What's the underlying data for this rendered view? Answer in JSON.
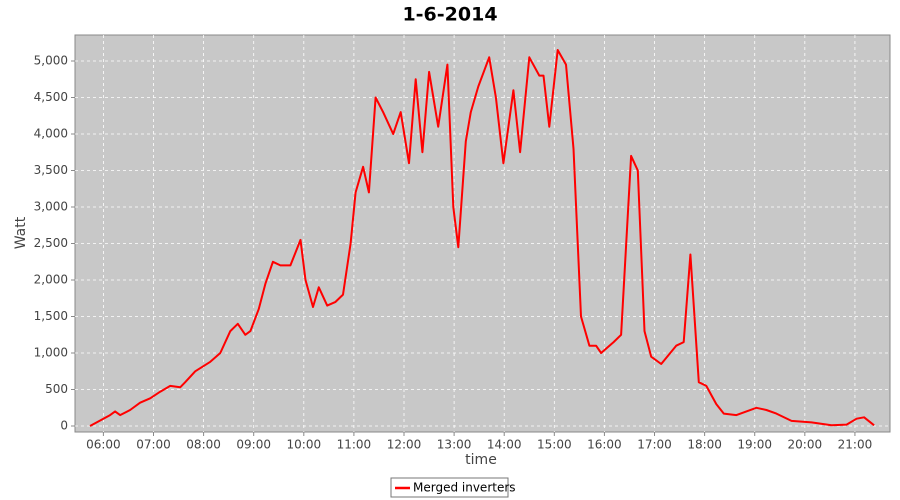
{
  "chart_data": {
    "type": "line",
    "title": "1-6-2014",
    "x_label": "time",
    "y_label": "Watt",
    "x": [
      "05:44",
      "06:08",
      "06:14",
      "06:20",
      "06:32",
      "06:44",
      "06:56",
      "07:08",
      "07:20",
      "07:32",
      "07:38",
      "07:50",
      "08:08",
      "08:20",
      "08:32",
      "08:41",
      "08:50",
      "08:56",
      "09:06",
      "09:14",
      "09:23",
      "09:32",
      "09:44",
      "09:56",
      "10:02",
      "10:11",
      "10:18",
      "10:28",
      "10:38",
      "10:47",
      "10:56",
      "11:02",
      "11:11",
      "11:18",
      "11:26",
      "11:35",
      "11:47",
      "11:56",
      "12:06",
      "12:14",
      "12:22",
      "12:30",
      "12:41",
      "12:52",
      "12:59",
      "13:05",
      "13:14",
      "13:20",
      "13:29",
      "13:42",
      "13:50",
      "13:59",
      "14:11",
      "14:19",
      "14:30",
      "14:42",
      "14:47",
      "14:54",
      "15:04",
      "15:14",
      "15:23",
      "15:32",
      "15:42",
      "15:50",
      "15:56",
      "16:11",
      "16:20",
      "16:32",
      "16:40",
      "16:48",
      "16:56",
      "17:08",
      "17:26",
      "17:35",
      "17:43",
      "17:53",
      "18:02",
      "18:14",
      "18:23",
      "18:38",
      "18:50",
      "19:02",
      "19:14",
      "19:26",
      "19:44",
      "20:08",
      "20:32",
      "20:50",
      "21:02",
      "21:11",
      "21:23"
    ],
    "series": [
      {
        "name": "Merged inverters",
        "color": "#ff0000",
        "values": [
          0,
          150,
          200,
          150,
          220,
          320,
          380,
          470,
          550,
          530,
          600,
          750,
          880,
          1000,
          1300,
          1400,
          1250,
          1300,
          1600,
          1950,
          2250,
          2200,
          2200,
          2550,
          2000,
          1630,
          1900,
          1650,
          1700,
          1800,
          2500,
          3200,
          3550,
          3200,
          4500,
          4300,
          4000,
          4300,
          3600,
          4750,
          3750,
          4850,
          4100,
          4950,
          3000,
          2450,
          3900,
          4300,
          4650,
          5050,
          4500,
          3600,
          4600,
          3750,
          5050,
          4800,
          4800,
          4100,
          5150,
          4950,
          3800,
          1500,
          1100,
          1100,
          1000,
          1150,
          1250,
          3700,
          3500,
          1300,
          950,
          850,
          1100,
          1150,
          2350,
          600,
          550,
          300,
          170,
          150,
          200,
          250,
          220,
          170,
          70,
          50,
          10,
          20,
          100,
          120,
          10
        ]
      }
    ],
    "xlim": [
      "05:26",
      "21:42"
    ],
    "xticks": [
      "06:00",
      "07:00",
      "08:00",
      "09:00",
      "10:00",
      "11:00",
      "12:00",
      "13:00",
      "14:00",
      "15:00",
      "16:00",
      "17:00",
      "18:00",
      "19:00",
      "20:00",
      "21:00"
    ],
    "ylim": [
      -82,
      5356
    ],
    "yticks": [
      0,
      500,
      {
        "value": 1000,
        "label": "1,000"
      },
      {
        "value": 1500,
        "label": "1,500"
      },
      {
        "value": 2000,
        "label": "2,000"
      },
      {
        "value": 2500,
        "label": "2,500"
      },
      {
        "value": 3000,
        "label": "3,000"
      },
      {
        "value": 3500,
        "label": "3,500"
      },
      {
        "value": 4000,
        "label": "4,000"
      },
      {
        "value": 4500,
        "label": "4,500"
      },
      {
        "value": 5000,
        "label": "5,000"
      }
    ],
    "grid": true,
    "legend": "bottom",
    "plot_background": "#c8c8c8"
  }
}
